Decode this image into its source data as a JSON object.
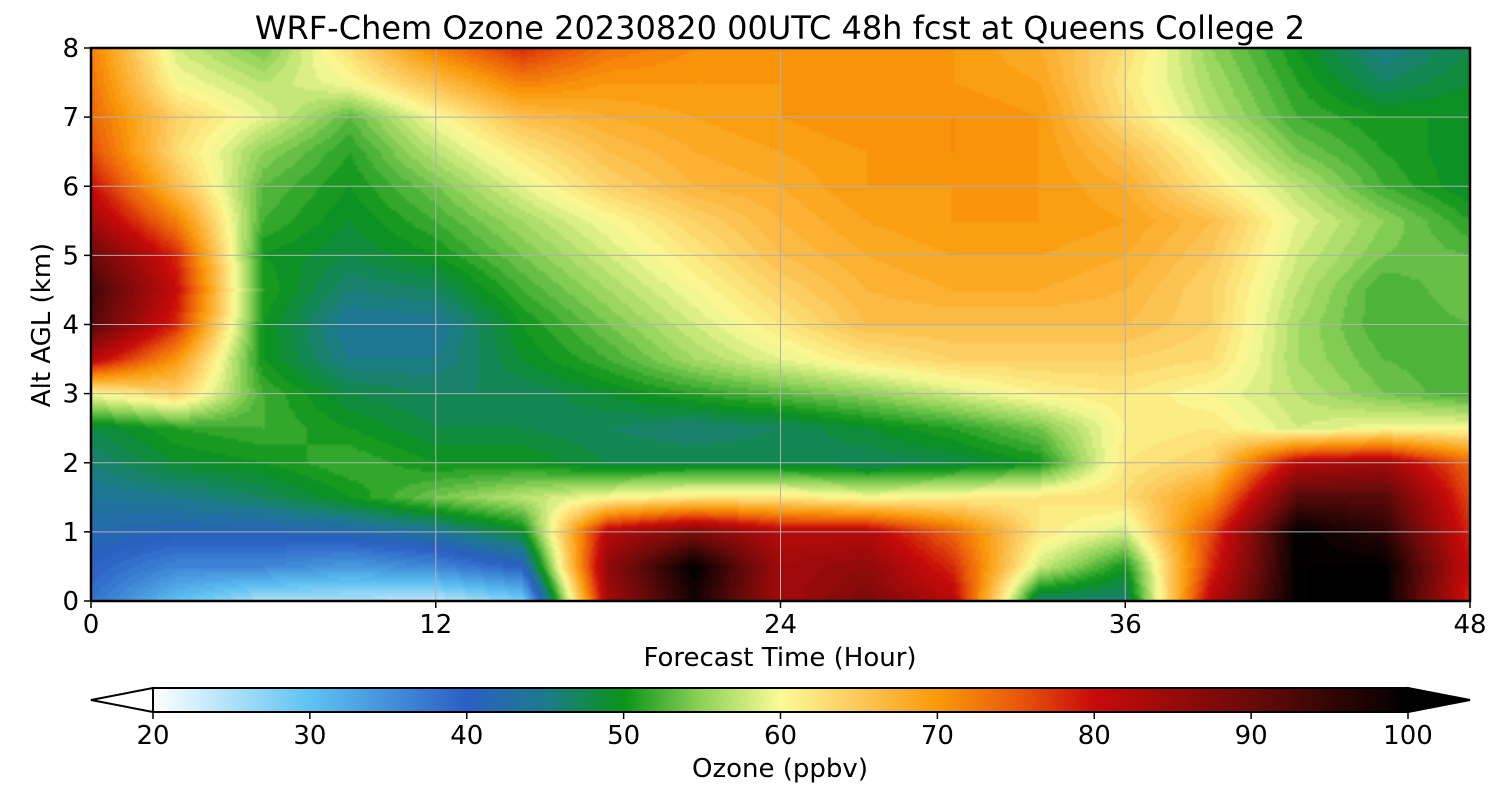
{
  "chart_data": {
    "type": "heatmap",
    "title": "WRF-Chem Ozone  20230820 00UTC 48h fcst at Queens College 2",
    "xlabel": "Forecast Time (Hour)",
    "ylabel": "Alt AGL (km)",
    "xlim": [
      0,
      48
    ],
    "ylim": [
      0,
      8
    ],
    "xticks": [
      0,
      12,
      24,
      36,
      48
    ],
    "yticks": [
      0,
      1,
      2,
      3,
      4,
      5,
      6,
      7,
      8
    ],
    "grid": true,
    "colorbar": {
      "label": "Ozone  (ppbv)",
      "range": [
        20,
        100
      ],
      "ticks": [
        20,
        30,
        40,
        50,
        60,
        70,
        80,
        90,
        100
      ],
      "extend": "both",
      "orientation": "horizontal",
      "colors": [
        {
          "v": 20,
          "c": "#ffffff"
        },
        {
          "v": 30,
          "c": "#5ec2f2"
        },
        {
          "v": 40,
          "c": "#2a5fc4"
        },
        {
          "v": 45,
          "c": "#1c7a8c"
        },
        {
          "v": 50,
          "c": "#0a9418"
        },
        {
          "v": 55,
          "c": "#8fd25a"
        },
        {
          "v": 60,
          "c": "#fbfb96"
        },
        {
          "v": 65,
          "c": "#fcc85a"
        },
        {
          "v": 70,
          "c": "#fb9a0a"
        },
        {
          "v": 75,
          "c": "#ea5a0a"
        },
        {
          "v": 80,
          "c": "#c80a0a"
        },
        {
          "v": 90,
          "c": "#6a0a0a"
        },
        {
          "v": 100,
          "c": "#000000"
        }
      ]
    },
    "grid_x": [
      0,
      3,
      6,
      9,
      12,
      15,
      18,
      21,
      24,
      27,
      30,
      33,
      36,
      39,
      42,
      45,
      48
    ],
    "grid_y": [
      0,
      0.5,
      1,
      1.5,
      2,
      2.5,
      3,
      3.5,
      4,
      4.5,
      5,
      5.5,
      6,
      6.5,
      7,
      7.5,
      8
    ],
    "z": [
      [
        38,
        30,
        25,
        25,
        24,
        28,
        84,
        98,
        84,
        88,
        82,
        46,
        46,
        82,
        100,
        100,
        78
      ],
      [
        40,
        36,
        36,
        34,
        36,
        40,
        86,
        100,
        84,
        86,
        78,
        58,
        50,
        78,
        100,
        100,
        80
      ],
      [
        42,
        41,
        41,
        42,
        44,
        49,
        82,
        88,
        82,
        82,
        74,
        62,
        58,
        76,
        100,
        96,
        78
      ],
      [
        44,
        45,
        47,
        50,
        54,
        57,
        60,
        62,
        62,
        60,
        61,
        62,
        63,
        70,
        92,
        92,
        76
      ],
      [
        46,
        49,
        50,
        52,
        50,
        50,
        48,
        48,
        48,
        47,
        48,
        50,
        62,
        64,
        82,
        84,
        74
      ],
      [
        48,
        51,
        52,
        50,
        48,
        48,
        47,
        46,
        47,
        49,
        51,
        54,
        61,
        62,
        58,
        60,
        60
      ],
      [
        60,
        64,
        52,
        48,
        47,
        47,
        49,
        51,
        53,
        55,
        58,
        61,
        62,
        60,
        57,
        54,
        52
      ],
      [
        82,
        70,
        50,
        45,
        45,
        49,
        52,
        56,
        59,
        62,
        64,
        64,
        64,
        63,
        56,
        53,
        52
      ],
      [
        92,
        78,
        50,
        44,
        44,
        50,
        54,
        58,
        62,
        66,
        66,
        66,
        66,
        64,
        56,
        52,
        53
      ],
      [
        94,
        80,
        51,
        46,
        47,
        52,
        56,
        60,
        64,
        67,
        68,
        68,
        67,
        64,
        57,
        52,
        54
      ],
      [
        90,
        78,
        50,
        48,
        50,
        54,
        58,
        62,
        66,
        68,
        69,
        69,
        68,
        65,
        58,
        54,
        53
      ],
      [
        84,
        72,
        52,
        49,
        52,
        56,
        60,
        64,
        67,
        69,
        70,
        70,
        69,
        66,
        59,
        55,
        51
      ],
      [
        80,
        66,
        53,
        50,
        54,
        59,
        64,
        67,
        68,
        70,
        70,
        70,
        68,
        62,
        57,
        52,
        49
      ],
      [
        76,
        63,
        55,
        51,
        57,
        62,
        66,
        68,
        69,
        70,
        71,
        70,
        66,
        60,
        54,
        51,
        49
      ],
      [
        74,
        64,
        59,
        53,
        60,
        66,
        68,
        69,
        70,
        71,
        71,
        70,
        63,
        57,
        52,
        50,
        50
      ],
      [
        73,
        60,
        57,
        60,
        66,
        72,
        70,
        70,
        70,
        70,
        70,
        69,
        62,
        56,
        51,
        47,
        49
      ],
      [
        72,
        58,
        54,
        63,
        72,
        78,
        73,
        71,
        71,
        70,
        70,
        68,
        63,
        55,
        50,
        45,
        48
      ]
    ]
  }
}
